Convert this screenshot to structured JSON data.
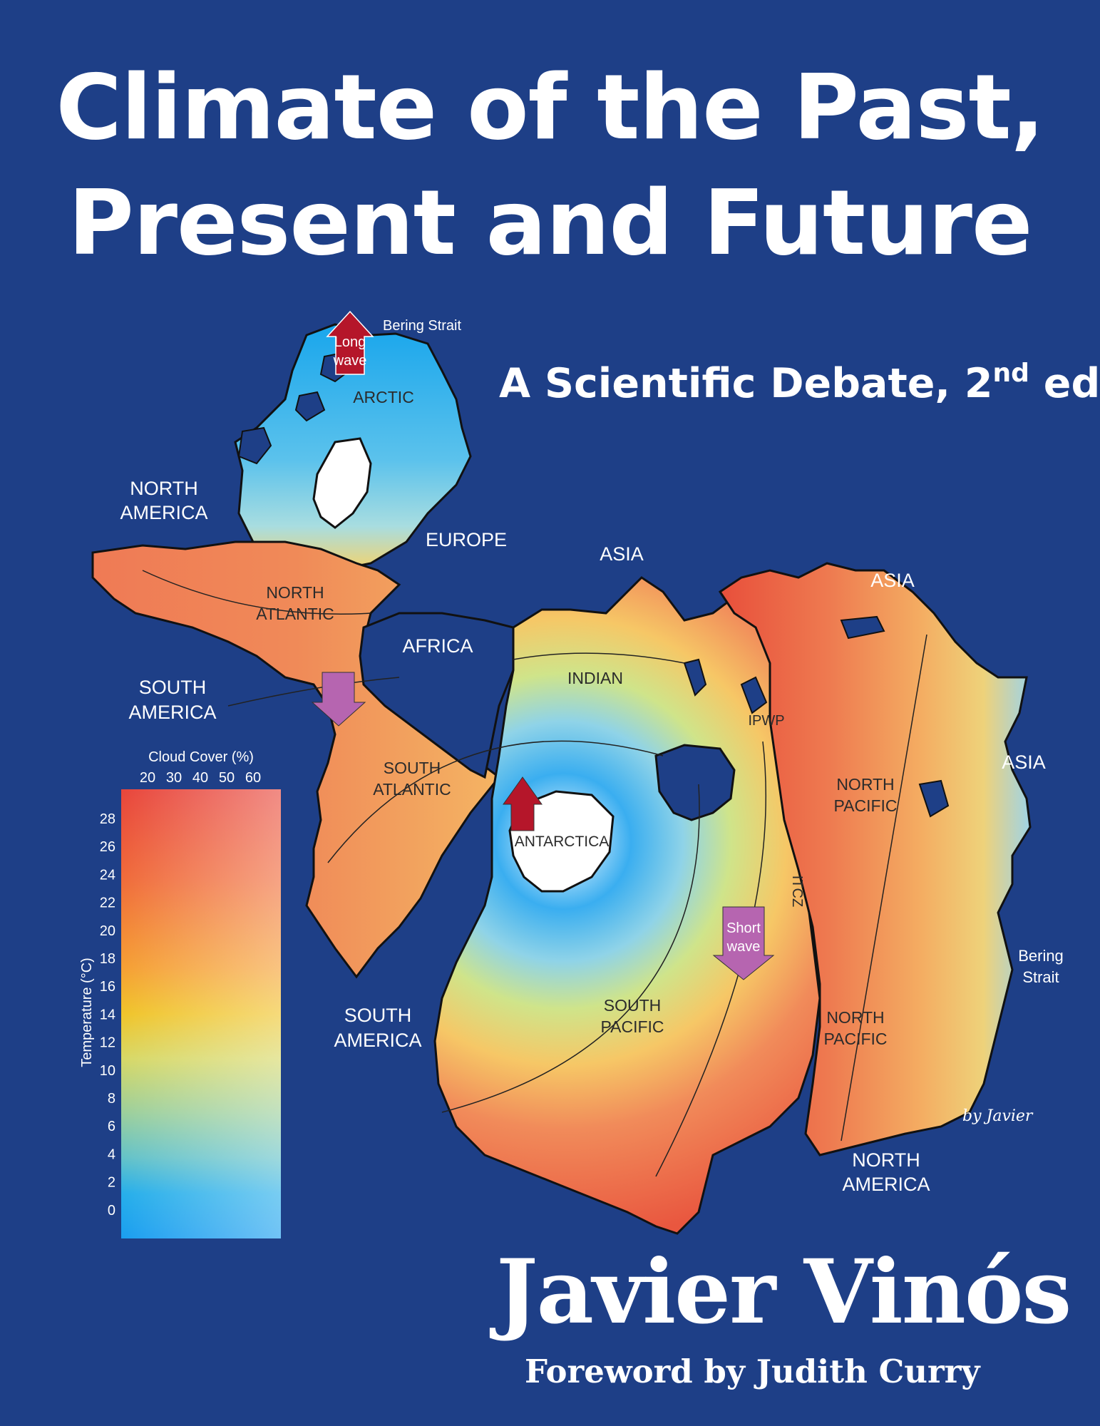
{
  "cover": {
    "title_line1": "Climate of the Past,",
    "title_line2": "Present and Future",
    "subtitle_main": "A Scientific Debate, 2",
    "subtitle_sup": "nd",
    "subtitle_end": " ed.",
    "author": "Javier Vinós",
    "foreword": "Foreword by Judith Curry",
    "background_color": "#1e3f87"
  },
  "map": {
    "continent_labels": {
      "north_america_1": [
        "NORTH",
        "AMERICA"
      ],
      "europe": "EUROPE",
      "asia_1": "ASIA",
      "asia_2": "ASIA",
      "asia_3": "ASIA",
      "africa": "AFRICA",
      "south_america_1": [
        "SOUTH",
        "AMERICA"
      ],
      "south_america_2": [
        "SOUTH",
        "AMERICA"
      ],
      "north_america_2": [
        "NORTH",
        "AMERICA"
      ]
    },
    "ocean_labels": {
      "arctic": "ARCTIC",
      "north_atlantic": [
        "NORTH",
        "ATLANTIC"
      ],
      "indian": "INDIAN",
      "south_atlantic": [
        "SOUTH",
        "ATLANTIC"
      ],
      "antarctica": "ANTARCTICA",
      "ipwp": "IPWP",
      "north_pacific_1": [
        "NORTH",
        "PACIFIC"
      ],
      "itcz": "ITCZ",
      "south_pacific": [
        "SOUTH",
        "PACIFIC"
      ],
      "north_pacific_2": [
        "NORTH",
        "PACIFIC"
      ]
    },
    "bering_strait_top": "Bering Strait",
    "bering_strait_right": [
      "Bering",
      "Strait"
    ],
    "arrow_long_wave": [
      "Long",
      "wave"
    ],
    "arrow_short_wave": [
      "Short",
      "wave"
    ],
    "signature": "by Javier"
  },
  "legend": {
    "title": "Cloud Cover (%)",
    "cloud_ticks": [
      "20",
      "30",
      "40",
      "50",
      "60"
    ],
    "temp_axis_label": "Temperature (°C)",
    "temp_ticks": [
      "28",
      "26",
      "24",
      "22",
      "20",
      "18",
      "16",
      "14",
      "12",
      "10",
      "8",
      "6",
      "4",
      "2",
      "0"
    ]
  }
}
